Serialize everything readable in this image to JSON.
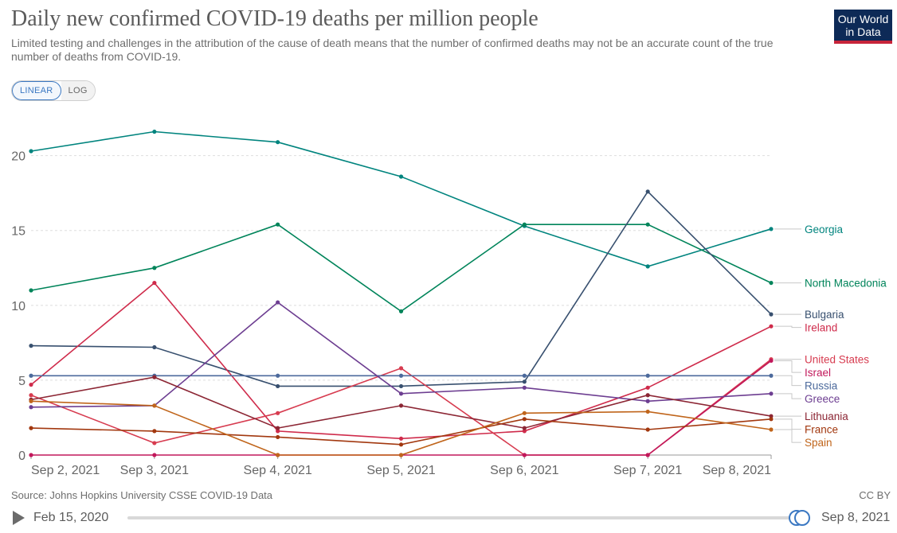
{
  "header": {
    "title": "Daily new confirmed COVID-19 deaths per million people",
    "subtitle": "Limited testing and challenges in the attribution of the cause of death means that the number of confirmed deaths may not be an accurate count of the true number of deaths from COVID-19.",
    "logo_line1": "Our World",
    "logo_line2": "in Data",
    "logo_bg": "#0d2a57",
    "logo_accent": "#c7243a"
  },
  "scale_toggle": {
    "linear_label": "LINEAR",
    "log_label": "LOG",
    "selected": "LINEAR"
  },
  "footer": {
    "source": "Source: Johns Hopkins University CSSE COVID-19 Data",
    "license": "CC BY"
  },
  "timeline": {
    "start_label": "Feb 15, 2020",
    "end_label": "Sep 8, 2021",
    "play_icon": "play-icon",
    "selection_start_fraction": 0.996,
    "selection_end_fraction": 1.0
  },
  "chart_data": {
    "type": "line",
    "title": "Daily new confirmed COVID-19 deaths per million people",
    "x": [
      "Sep 2, 2021",
      "Sep 3, 2021",
      "Sep 4, 2021",
      "Sep 5, 2021",
      "Sep 6, 2021",
      "Sep 7, 2021",
      "Sep 8, 2021"
    ],
    "ylim": [
      0,
      22
    ],
    "yticks": [
      0,
      5,
      10,
      15,
      20
    ],
    "grid": "horizontal dashed",
    "legend": "right, end-of-line labels",
    "series": [
      {
        "name": "Georgia",
        "color": "#00847e",
        "values": [
          20.3,
          21.6,
          20.9,
          18.6,
          15.3,
          12.6,
          15.1
        ]
      },
      {
        "name": "North Macedonia",
        "color": "#00845a",
        "values": [
          11.0,
          12.5,
          15.4,
          9.6,
          15.4,
          15.4,
          11.5
        ]
      },
      {
        "name": "Bulgaria",
        "color": "#38506f",
        "values": [
          7.3,
          7.2,
          4.6,
          4.6,
          4.9,
          17.6,
          9.4
        ]
      },
      {
        "name": "Ireland",
        "color": "#cf2b4b",
        "values": [
          4.7,
          11.5,
          1.6,
          1.1,
          1.6,
          4.5,
          8.6
        ]
      },
      {
        "name": "United States",
        "color": "#d73c50",
        "values": [
          4.0,
          0.8,
          2.8,
          5.8,
          0.0,
          0.0,
          6.4
        ]
      },
      {
        "name": "Israel",
        "color": "#c2185b",
        "values": [
          0.0,
          0.0,
          0.0,
          0.0,
          0.0,
          0.0,
          6.3
        ]
      },
      {
        "name": "Russia",
        "color": "#4c6a9c",
        "values": [
          5.3,
          5.3,
          5.3,
          5.3,
          5.3,
          5.3,
          5.3
        ]
      },
      {
        "name": "Greece",
        "color": "#6d3e91",
        "values": [
          3.2,
          3.3,
          10.2,
          4.1,
          4.5,
          3.6,
          4.1
        ]
      },
      {
        "name": "Lithuania",
        "color": "#8c2634",
        "values": [
          3.7,
          5.2,
          1.8,
          3.3,
          1.8,
          4.0,
          2.6
        ]
      },
      {
        "name": "France",
        "color": "#a2380f",
        "values": [
          1.8,
          1.6,
          1.2,
          0.7,
          2.4,
          1.7,
          2.4
        ]
      },
      {
        "name": "Spain",
        "color": "#c0651b",
        "values": [
          3.6,
          3.3,
          0.0,
          0.0,
          2.8,
          2.9,
          1.7
        ]
      }
    ]
  }
}
